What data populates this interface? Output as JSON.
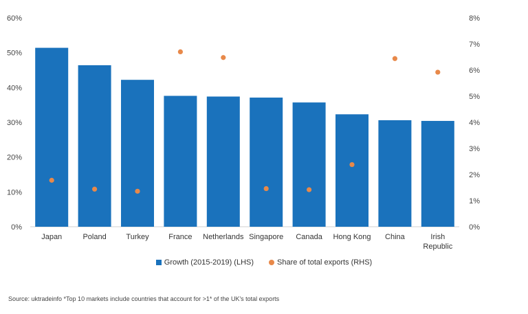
{
  "chart_data": {
    "type": "bar",
    "categories": [
      "Japan",
      "Poland",
      "Turkey",
      "France",
      "Netherlands",
      "Singapore",
      "Canada",
      "Hong Kong",
      "China",
      "Irish Republic"
    ],
    "series": [
      {
        "name": "Growth (2015-2019) (LHS)",
        "type": "bar",
        "axis": "left",
        "values": [
          51.4,
          46.4,
          42.2,
          37.6,
          37.4,
          37.1,
          35.7,
          32.3,
          30.6,
          30.4
        ]
      },
      {
        "name": "Share of total exports (RHS)",
        "type": "scatter",
        "axis": "right",
        "values": [
          1.78,
          1.44,
          1.36,
          6.7,
          6.48,
          1.46,
          1.42,
          2.38,
          6.44,
          5.92
        ]
      }
    ],
    "yleft_ticks": [
      "0%",
      "10%",
      "20%",
      "30%",
      "40%",
      "50%",
      "60%"
    ],
    "yright_ticks": [
      "0%",
      "1%",
      "2%",
      "3%",
      "4%",
      "5%",
      "6%",
      "7%",
      "8%"
    ],
    "ylim_left": [
      0,
      60
    ],
    "ylim_right": [
      0,
      8
    ],
    "grid": false,
    "legend_position": "bottom",
    "colors": {
      "bar": "#1a72bc",
      "dot": "#e8894a"
    }
  },
  "source_text": "Source: uktradeinfo *Top 10 markets include countries that account for >1* of the UK's total exports"
}
